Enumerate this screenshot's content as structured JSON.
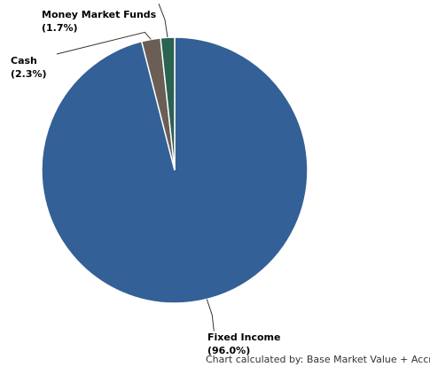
{
  "chart_data": {
    "type": "pie",
    "slices": [
      {
        "name": "Fixed Income",
        "pct_label": "(96.0%)",
        "value": 96.0,
        "color": "#336096"
      },
      {
        "name": "Cash",
        "pct_label": "(2.3%)",
        "value": 2.3,
        "color": "#6b5e55"
      },
      {
        "name": "Money Market Funds",
        "pct_label": "(1.7%)",
        "value": 1.7,
        "color": "#2a6350"
      }
    ],
    "leader_line_color": "#333333",
    "footnote": "Chart calculated by: Base Market Value + Accrued"
  }
}
